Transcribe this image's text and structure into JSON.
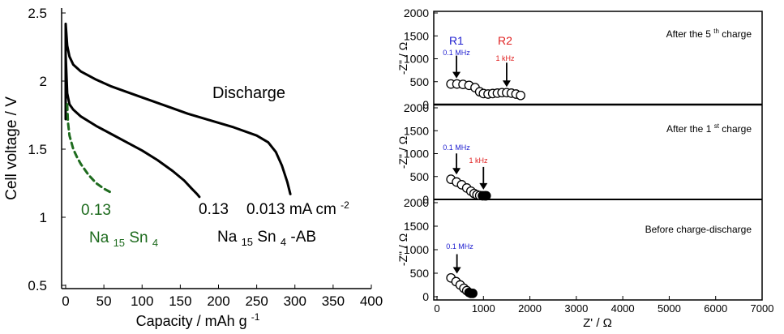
{
  "colors": {
    "black": "#000000",
    "green": "#1e6b1e",
    "blue": "#2020d0",
    "red": "#e02020"
  },
  "chart_data": [
    {
      "type": "line",
      "title": "",
      "xlabel": "Capacity / mAh g",
      "xlabel_sup": "-1",
      "ylabel": "Cell voltage / V",
      "xlim": [
        0,
        400
      ],
      "ylim": [
        0.5,
        2.5
      ],
      "xticks": [
        "0",
        "50",
        "100",
        "150",
        "200",
        "250",
        "300",
        "350",
        "400"
      ],
      "yticks": [
        "0.5",
        "1",
        "1.5",
        "2",
        "2.5"
      ],
      "annotations": {
        "discharge": "Discharge",
        "green_rate": "0.13",
        "green_material": {
          "base": "Na",
          "sub1": "15",
          "mid": "Sn",
          "sub2": "4"
        },
        "black_rate_a": "0.13",
        "black_rate_b": "0.013 mA cm",
        "black_rate_sup": "-2",
        "black_material": {
          "base": "Na",
          "sub1": "15",
          "mid": "Sn",
          "sub2": "4",
          "suffix": "-AB"
        }
      },
      "series": [
        {
          "name": "Na15Sn4-AB 0.013 mA cm-2",
          "style": "solid",
          "color": "#000000",
          "x": [
            0,
            0,
            2,
            5,
            10,
            20,
            40,
            60,
            80,
            100,
            130,
            160,
            190,
            220,
            250,
            265,
            275,
            283,
            290,
            294
          ],
          "y": [
            2.18,
            2.42,
            2.26,
            2.18,
            2.12,
            2.07,
            2.01,
            1.96,
            1.92,
            1.88,
            1.82,
            1.76,
            1.71,
            1.66,
            1.6,
            1.55,
            1.48,
            1.38,
            1.26,
            1.17
          ]
        },
        {
          "name": "Na15Sn4-AB 0.13 mA cm-2",
          "style": "solid",
          "color": "#000000",
          "x": [
            0,
            0,
            2,
            5,
            10,
            20,
            40,
            60,
            80,
            100,
            120,
            140,
            155,
            165,
            172,
            175
          ],
          "y": [
            1.72,
            2.19,
            1.91,
            1.83,
            1.79,
            1.74,
            1.67,
            1.61,
            1.55,
            1.49,
            1.42,
            1.34,
            1.27,
            1.21,
            1.17,
            1.15
          ]
        },
        {
          "name": "Na15Sn4 0.13 mA cm-2",
          "style": "dashed",
          "color": "#1e6b1e",
          "x": [
            2,
            3,
            5,
            10,
            15,
            20,
            30,
            40,
            50,
            60
          ],
          "y": [
            1.83,
            1.7,
            1.6,
            1.5,
            1.44,
            1.39,
            1.31,
            1.25,
            1.21,
            1.18
          ]
        }
      ]
    },
    {
      "type": "scatter",
      "xlabel": "Z' / Ω",
      "ylabel": "-Z\" / Ω",
      "xlim": [
        0,
        7000
      ],
      "ylim": [
        0,
        2000
      ],
      "xticks": [
        "0",
        "1000",
        "2000",
        "3000",
        "4000",
        "5000",
        "6000",
        "7000"
      ],
      "yticks": [
        "0",
        "500",
        "1000",
        "1500",
        "2000"
      ],
      "panels": [
        {
          "id": "after-5th-charge",
          "label": {
            "pre": "After the 5",
            "sup": "th",
            "post": " charge"
          },
          "markers": [
            {
              "name": "R1",
              "freq": "0.1 MHz",
              "color": "#2020d0",
              "x": 420,
              "y": 450
            },
            {
              "name": "R2",
              "freq": "1 kHz",
              "color": "#e02020",
              "x": 1500,
              "y": 260
            }
          ],
          "x": [
            300,
            430,
            560,
            690,
            820,
            920,
            1000,
            1100,
            1200,
            1300,
            1400,
            1500,
            1600,
            1700,
            1800
          ],
          "y": [
            450,
            450,
            440,
            420,
            370,
            280,
            240,
            230,
            240,
            250,
            260,
            260,
            250,
            230,
            200
          ]
        },
        {
          "id": "after-1st-charge",
          "label": {
            "pre": "After the 1",
            "sup": "st",
            "post": " charge"
          },
          "markers": [
            {
              "name": "",
              "freq": "0.1 MHz",
              "color": "#2020d0",
              "x": 420,
              "y": 420
            },
            {
              "name": "",
              "freq": "1 kHz",
              "color": "#e02020",
              "x": 1000,
              "y": 90
            }
          ],
          "x": [
            300,
            420,
            530,
            640,
            730,
            800,
            860,
            920,
            980,
            1030,
            1060
          ],
          "y": [
            440,
            380,
            320,
            250,
            180,
            130,
            100,
            85,
            80,
            80,
            80
          ]
        },
        {
          "id": "before-charge-discharge",
          "label": {
            "pre": "Before charge-discharge",
            "sup": "",
            "post": ""
          },
          "markers": [
            {
              "name": "",
              "freq": "0.1 MHz",
              "color": "#2020d0",
              "x": 430,
              "y": 370
            }
          ],
          "x": [
            300,
            410,
            500,
            580,
            640,
            690,
            730,
            770
          ],
          "y": [
            400,
            320,
            250,
            180,
            130,
            90,
            70,
            70
          ]
        }
      ]
    }
  ]
}
